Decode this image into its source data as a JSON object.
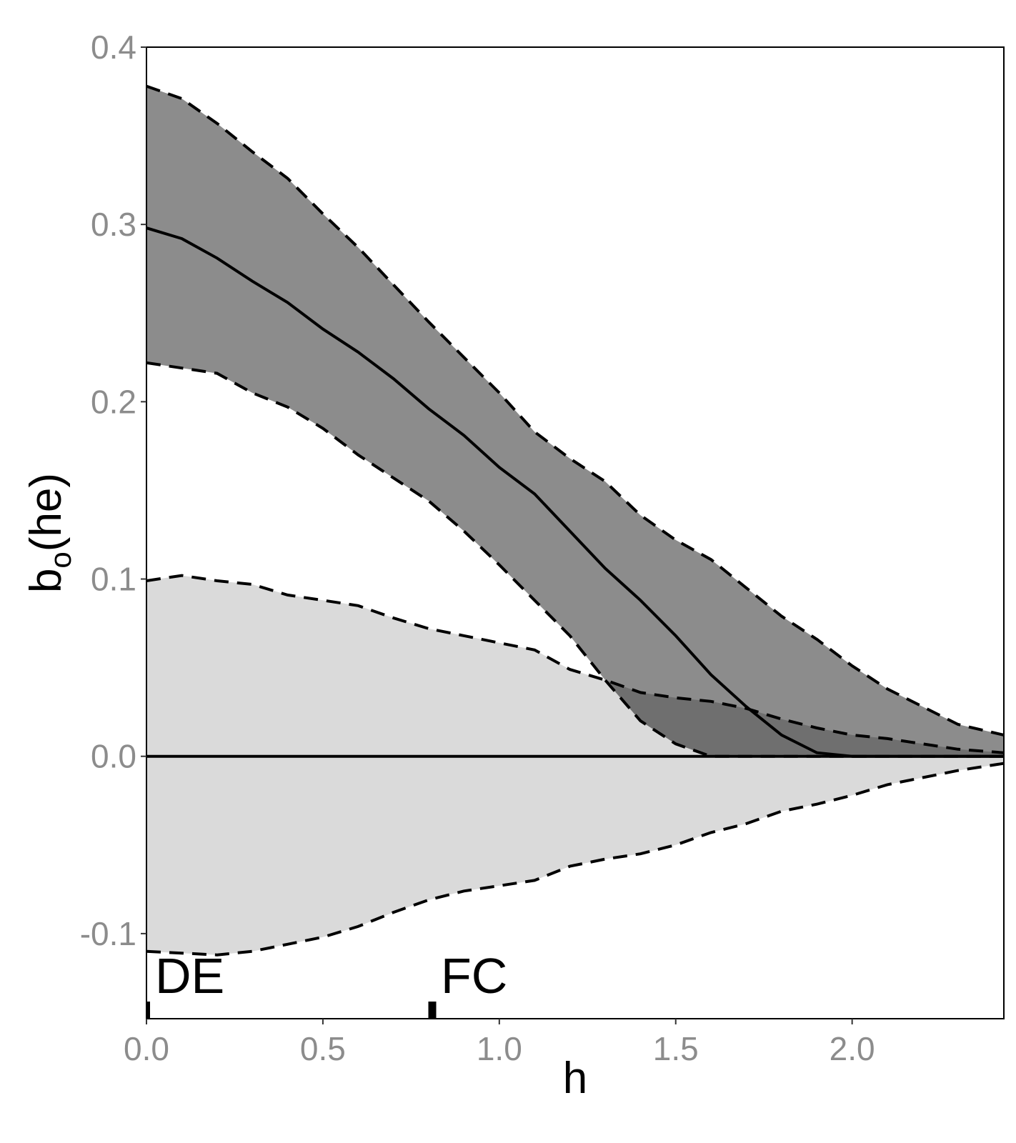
{
  "chart_data": {
    "type": "area",
    "xlabel": "h",
    "ylabel": "b_o(he)",
    "ylabel_main": "b",
    "ylabel_sub": "o",
    "ylabel_tail": "(he)",
    "xlim": [
      0,
      2.43
    ],
    "ylim": [
      -0.148,
      0.4
    ],
    "x_ticks": [
      0.0,
      0.5,
      1.0,
      1.5,
      2.0
    ],
    "x_tick_labels": [
      "0.0",
      "0.5",
      "1.0",
      "1.5",
      "2.0"
    ],
    "y_ticks": [
      -0.1,
      0.0,
      0.1,
      0.2,
      0.3,
      0.4
    ],
    "y_tick_labels": [
      "-0.1",
      "0.0",
      "0.1",
      "0.2",
      "0.3",
      "0.4"
    ],
    "grid": false,
    "legend": "none",
    "colors": {
      "observed_band": "#8c8c8c",
      "null_band": "#dadada",
      "overlap": "#6f6f6f",
      "lines": "#000000"
    },
    "x": [
      0.0,
      0.1,
      0.2,
      0.3,
      0.4,
      0.5,
      0.6,
      0.7,
      0.8,
      0.9,
      1.0,
      1.1,
      1.2,
      1.3,
      1.4,
      1.5,
      1.6,
      1.7,
      1.8,
      1.9,
      2.0,
      2.1,
      2.2,
      2.3,
      2.43
    ],
    "series": [
      {
        "role": "estimate",
        "values": [
          0.298,
          0.292,
          0.281,
          0.268,
          0.256,
          0.241,
          0.228,
          0.213,
          0.196,
          0.181,
          0.163,
          0.148,
          0.127,
          0.106,
          0.088,
          0.068,
          0.046,
          0.028,
          0.012,
          0.002,
          0.0,
          0.0,
          0.0,
          0.0,
          0.0
        ]
      },
      {
        "role": "observed_upper",
        "values": [
          0.378,
          0.371,
          0.357,
          0.341,
          0.326,
          0.306,
          0.287,
          0.266,
          0.245,
          0.225,
          0.205,
          0.183,
          0.168,
          0.155,
          0.136,
          0.122,
          0.111,
          0.095,
          0.079,
          0.066,
          0.051,
          0.038,
          0.028,
          0.018,
          0.012
        ]
      },
      {
        "role": "observed_lower",
        "values": [
          0.222,
          0.219,
          0.216,
          0.205,
          0.197,
          0.185,
          0.17,
          0.157,
          0.144,
          0.127,
          0.108,
          0.088,
          0.068,
          0.043,
          0.02,
          0.007,
          0.0,
          0.0,
          0.0,
          0.0,
          0.0,
          0.0,
          0.0,
          0.0,
          0.0
        ]
      },
      {
        "role": "null_upper",
        "values": [
          0.099,
          0.102,
          0.099,
          0.097,
          0.091,
          0.088,
          0.085,
          0.078,
          0.072,
          0.068,
          0.064,
          0.06,
          0.049,
          0.043,
          0.036,
          0.033,
          0.031,
          0.027,
          0.021,
          0.016,
          0.012,
          0.01,
          0.007,
          0.004,
          0.002
        ]
      },
      {
        "role": "null_lower",
        "values": [
          -0.11,
          -0.111,
          -0.112,
          -0.11,
          -0.106,
          -0.102,
          -0.096,
          -0.088,
          -0.081,
          -0.076,
          -0.073,
          -0.07,
          -0.062,
          -0.058,
          -0.055,
          -0.05,
          -0.043,
          -0.038,
          -0.031,
          -0.027,
          -0.022,
          -0.016,
          -0.012,
          -0.008,
          -0.004
        ]
      }
    ],
    "annotations": [
      {
        "label": "DE",
        "x": 0.0
      },
      {
        "label": "FC",
        "x": 0.81
      }
    ]
  }
}
